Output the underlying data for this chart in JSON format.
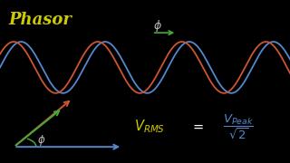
{
  "background_color": "#000000",
  "title_text": "Phasor",
  "title_color": "#cccc00",
  "title_fontsize": 13,
  "wave1_color": "#5588cc",
  "wave2_color": "#cc5533",
  "wave_phase_shift": 0.55,
  "wave_linewidth": 1.3,
  "phi_label_color": "#bbbbbb",
  "green_arrow_color": "#44aa33",
  "phasor_red_color": "#cc5533",
  "phasor_blue_color": "#5588cc",
  "phasor_green_color": "#44aa33",
  "formula_color_V": "#cccc00",
  "formula_color_frac": "#5588cc",
  "formula_color_eq": "#ffffff"
}
